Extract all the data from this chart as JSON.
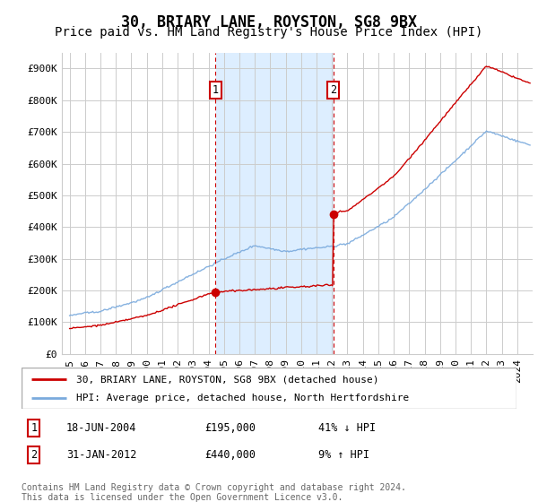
{
  "title": "30, BRIARY LANE, ROYSTON, SG8 9BX",
  "subtitle": "Price paid vs. HM Land Registry's House Price Index (HPI)",
  "ylim": [
    0,
    950000
  ],
  "yticks": [
    0,
    100000,
    200000,
    300000,
    400000,
    500000,
    600000,
    700000,
    800000,
    900000
  ],
  "ytick_labels": [
    "£0",
    "£100K",
    "£200K",
    "£300K",
    "£400K",
    "£500K",
    "£600K",
    "£700K",
    "£800K",
    "£900K"
  ],
  "transaction1": {
    "date_label": "18-JUN-2004",
    "price": 195000,
    "hpi_pct": "41% ↓ HPI",
    "year": 2004.46
  },
  "transaction2": {
    "date_label": "31-JAN-2012",
    "price": 440000,
    "hpi_pct": "9% ↑ HPI",
    "year": 2012.08
  },
  "legend_line1": "30, BRIARY LANE, ROYSTON, SG8 9BX (detached house)",
  "legend_line2": "HPI: Average price, detached house, North Hertfordshire",
  "footer": "Contains HM Land Registry data © Crown copyright and database right 2024.\nThis data is licensed under the Open Government Licence v3.0.",
  "red_color": "#cc0000",
  "blue_color": "#7aaadd",
  "shade_color": "#ddeeff",
  "grid_color": "#cccccc",
  "title_fontsize": 12,
  "subtitle_fontsize": 10,
  "tick_fontsize": 8
}
